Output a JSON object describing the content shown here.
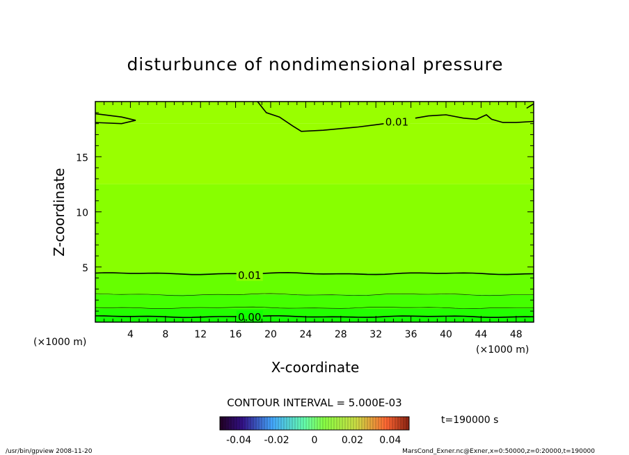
{
  "chart_data": {
    "type": "heatmap",
    "title": "disturbunce of nondimensional pressure",
    "xlabel": "X-coordinate",
    "ylabel": "Z-coordinate",
    "x_unit": "(×1000 m)",
    "y_unit": "(×1000 m)",
    "xlim": [
      0,
      50
    ],
    "ylim": [
      0,
      20
    ],
    "x_ticks": [
      4,
      8,
      12,
      16,
      20,
      24,
      28,
      32,
      36,
      40,
      44,
      48
    ],
    "y_ticks": [
      5,
      10,
      15
    ],
    "contour_labels": [
      {
        "text": "0.01",
        "x": 34.4,
        "z": 18.2
      },
      {
        "text": "0.01",
        "x": 17.6,
        "z": 4.3
      },
      {
        "text": "0.00",
        "x": 17.6,
        "z": 0.5
      }
    ],
    "contour_interval": "CONTOUR INTERVAL = 5.000E-03",
    "colorbar": {
      "ticks": [
        "-0.04",
        "-0.02",
        "0",
        "0.02",
        "0.04"
      ],
      "range": [
        -0.05,
        0.05
      ]
    },
    "time_label": "t=190000 s",
    "footer_left": "/usr/bin/gpview   2008-11-20",
    "footer_right": "MarsCond_Exner.nc@Exner,x=0:50000,z=0:20000,t=190000",
    "colors": {
      "band_top": "#99ff00",
      "band_mid": "#88ff00",
      "band_low1": "#66ff00",
      "band_low2": "#44ff00",
      "band_low3": "#22ff00",
      "band_bottom": "#11ff00"
    }
  }
}
